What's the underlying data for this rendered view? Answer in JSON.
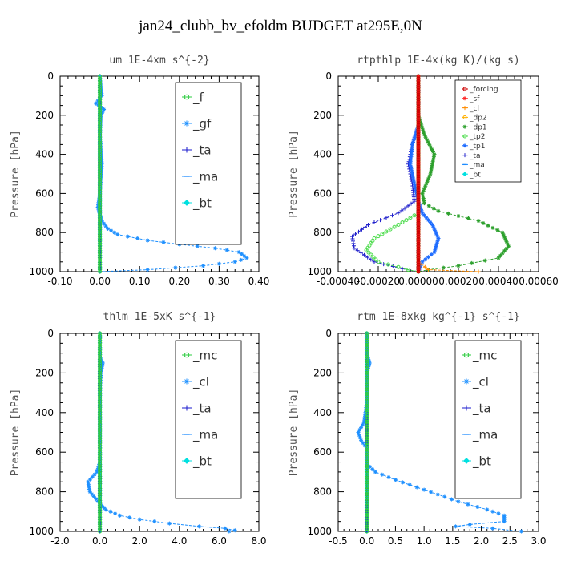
{
  "title": "jan24_clubb_bv_efoldm  BUDGET at295E,0N",
  "chart_data": [
    {
      "type": "line",
      "title": "um  1E-4xm s^{-2}",
      "ylabel": "Pressure [hPa]",
      "xlim": [
        -0.1,
        0.4
      ],
      "ylim": [
        1000,
        0
      ],
      "xticks": [
        "-0.10",
        "0.00",
        "0.10",
        "0.20",
        "0.30",
        "0.40"
      ],
      "yticks": [
        "0",
        "200",
        "400",
        "600",
        "800",
        "1000"
      ],
      "legend_size": "large",
      "series": [
        {
          "name": "_f",
          "color": "#2ecc40",
          "marker": "circle",
          "points": [
            [
              0.0,
              0
            ],
            [
              0.0,
              200
            ],
            [
              0.0,
              400
            ],
            [
              0.0,
              600
            ],
            [
              0.0,
              800
            ],
            [
              0.0,
              1000
            ]
          ]
        },
        {
          "name": "_gf",
          "color": "#1e90ff",
          "marker": "star",
          "points": [
            [
              0.0,
              0
            ],
            [
              0.005,
              100
            ],
            [
              -0.01,
              140
            ],
            [
              0.01,
              170
            ],
            [
              0.003,
              200
            ],
            [
              0.0,
              300
            ],
            [
              0.005,
              450
            ],
            [
              0.0,
              600
            ],
            [
              -0.005,
              670
            ],
            [
              0.0,
              710
            ],
            [
              0.005,
              740
            ],
            [
              0.02,
              780
            ],
            [
              0.045,
              810
            ],
            [
              0.12,
              840
            ],
            [
              0.2,
              860
            ],
            [
              0.29,
              880
            ],
            [
              0.35,
              900
            ],
            [
              0.37,
              930
            ],
            [
              0.34,
              950
            ],
            [
              0.26,
              970
            ],
            [
              0.12,
              990
            ],
            [
              0.0,
              1000
            ]
          ]
        },
        {
          "name": "_ta",
          "color": "#1a1acd",
          "marker": "plus",
          "points": [
            [
              0.0,
              0
            ],
            [
              0.0,
              500
            ],
            [
              0.0,
              1000
            ]
          ]
        },
        {
          "name": "_ma",
          "color": "#1e8cff",
          "marker": "dash",
          "points": [
            [
              0.0,
              0
            ],
            [
              0.0,
              1000
            ]
          ]
        },
        {
          "name": "_bt",
          "color": "#00e0e0",
          "marker": "diamond",
          "points": [
            [
              0.0,
              0
            ],
            [
              0.0,
              1000
            ]
          ]
        }
      ]
    },
    {
      "type": "line",
      "title": "rtpthlp  1E-4x(kg K)/(kg s)",
      "ylabel": "Pressure [hPa]",
      "xlim": [
        -0.0004,
        0.0006
      ],
      "ylim": [
        1000,
        0
      ],
      "xticks": [
        "-0.00040",
        "-0.00020",
        "0.00000",
        "0.00020",
        "0.00040",
        "0.00060"
      ],
      "yticks": [
        "0",
        "200",
        "400",
        "600",
        "800",
        "1000"
      ],
      "legend_size": "small",
      "series": [
        {
          "name": "_forcing",
          "color": "#cc0000",
          "marker": "circle",
          "points": [
            [
              0.0,
              0
            ],
            [
              0.0,
              500
            ],
            [
              0.0,
              1000
            ]
          ]
        },
        {
          "name": "_sf",
          "color": "#ff2020",
          "marker": "star",
          "points": [
            [
              0.0,
              0
            ],
            [
              0.0,
              500
            ],
            [
              0.0,
              1000
            ]
          ]
        },
        {
          "name": "_cl",
          "color": "#ff8c00",
          "marker": "plus",
          "points": [
            [
              0.0,
              0
            ],
            [
              0.0,
              950
            ],
            [
              5e-05,
              990
            ],
            [
              0.0003,
              1000
            ]
          ]
        },
        {
          "name": "_dp2",
          "color": "#ffb000",
          "marker": "circle",
          "points": [
            [
              0.0,
              0
            ],
            [
              0.0,
              1000
            ]
          ]
        },
        {
          "name": "_dp1",
          "color": "#2ca02c",
          "marker": "star",
          "points": [
            [
              0.0,
              0
            ],
            [
              0.0,
              200
            ],
            [
              3e-05,
              300
            ],
            [
              8e-05,
              400
            ],
            [
              6e-05,
              500
            ],
            [
              2e-05,
              600
            ],
            [
              3e-05,
              650
            ],
            [
              0.0001,
              690
            ],
            [
              0.0003,
              740
            ],
            [
              0.00042,
              800
            ],
            [
              0.00045,
              870
            ],
            [
              0.0004,
              930
            ],
            [
              0.0002,
              970
            ],
            [
              5e-05,
              990
            ],
            [
              0.0,
              1000
            ]
          ]
        },
        {
          "name": "_tp2",
          "color": "#4ddc4d",
          "marker": "circle",
          "points": [
            [
              0.0,
              0
            ],
            [
              0.0,
              700
            ],
            [
              -0.0001,
              760
            ],
            [
              -0.00022,
              830
            ],
            [
              -0.00026,
              890
            ],
            [
              -0.0002,
              950
            ],
            [
              -5e-05,
              990
            ],
            [
              0.0,
              1000
            ]
          ]
        },
        {
          "name": "_tp1",
          "color": "#1e6cff",
          "marker": "star",
          "points": [
            [
              0.0,
              0
            ],
            [
              0.0,
              250
            ],
            [
              -3e-05,
              350
            ],
            [
              -4e-05,
              450
            ],
            [
              -2e-05,
              550
            ],
            [
              0.0,
              640
            ],
            [
              2e-05,
              700
            ],
            [
              7e-05,
              760
            ],
            [
              0.0001,
              830
            ],
            [
              8e-05,
              900
            ],
            [
              2e-05,
              950
            ],
            [
              0.0,
              1000
            ]
          ]
        },
        {
          "name": "_ta",
          "color": "#2222cc",
          "marker": "plus",
          "points": [
            [
              0.0,
              0
            ],
            [
              0.0,
              250
            ],
            [
              -3e-05,
              350
            ],
            [
              -5e-05,
              450
            ],
            [
              -3e-05,
              550
            ],
            [
              -2e-05,
              640
            ],
            [
              -0.0001,
              700
            ],
            [
              -0.00025,
              760
            ],
            [
              -0.00033,
              820
            ],
            [
              -0.00032,
              880
            ],
            [
              -0.00022,
              950
            ],
            [
              -8e-05,
              985
            ],
            [
              0.0,
              1000
            ]
          ]
        },
        {
          "name": "_ma",
          "color": "#1e8cff",
          "marker": "dash",
          "points": [
            [
              0.0,
              0
            ],
            [
              0.0,
              1000
            ]
          ]
        },
        {
          "name": "_bt",
          "color": "#00e0e0",
          "marker": "diamond",
          "points": [
            [
              0.0,
              0
            ],
            [
              0.0,
              1000
            ]
          ]
        }
      ]
    },
    {
      "type": "line",
      "title": "thlm  1E-5xK s^{-1}",
      "ylabel": "Pressure [hPa]",
      "xlim": [
        -2.0,
        8.0
      ],
      "ylim": [
        1000,
        0
      ],
      "xticks": [
        "-2.0",
        "0.0",
        "2.0",
        "4.0",
        "6.0",
        "8.0"
      ],
      "yticks": [
        "0",
        "200",
        "400",
        "600",
        "800",
        "1000"
      ],
      "legend_size": "large",
      "series": [
        {
          "name": "_mc",
          "color": "#2ecc40",
          "marker": "circle",
          "points": [
            [
              0.0,
              0
            ],
            [
              0.0,
              200
            ],
            [
              0.0,
              400
            ],
            [
              0.0,
              600
            ],
            [
              0.0,
              800
            ],
            [
              0.0,
              1000
            ]
          ]
        },
        {
          "name": "_cl",
          "color": "#1e90ff",
          "marker": "star",
          "points": [
            [
              0.0,
              0
            ],
            [
              0.0,
              120
            ],
            [
              0.15,
              150
            ],
            [
              0.05,
              200
            ],
            [
              0.0,
              300
            ],
            [
              0.0,
              500
            ],
            [
              0.0,
              650
            ],
            [
              -0.15,
              700
            ],
            [
              -0.6,
              750
            ],
            [
              -0.5,
              800
            ],
            [
              0.0,
              860
            ],
            [
              0.3,
              890
            ],
            [
              1.0,
              920
            ],
            [
              2.0,
              940
            ],
            [
              3.5,
              960
            ],
            [
              5.0,
              975
            ],
            [
              6.3,
              985
            ],
            [
              6.8,
              995
            ],
            [
              6.5,
              1000
            ]
          ]
        },
        {
          "name": "_ta",
          "color": "#1a1acd",
          "marker": "plus",
          "points": [
            [
              0.0,
              0
            ],
            [
              0.0,
              1000
            ]
          ]
        },
        {
          "name": "_ma",
          "color": "#1e8cff",
          "marker": "dash",
          "points": [
            [
              0.0,
              0
            ],
            [
              0.0,
              1000
            ]
          ]
        },
        {
          "name": "_bt",
          "color": "#00e0e0",
          "marker": "diamond",
          "points": [
            [
              0.0,
              0
            ],
            [
              0.0,
              1000
            ]
          ]
        }
      ]
    },
    {
      "type": "line",
      "title": "rtm  1E-8xkg kg^{-1} s^{-1}",
      "ylabel": "Pressure [hPa]",
      "xlim": [
        -0.5,
        3.0
      ],
      "ylim": [
        1000,
        0
      ],
      "xticks": [
        "-0.5",
        "0.0",
        "0.5",
        "1.0",
        "1.5",
        "2.0",
        "2.5",
        "3.0"
      ],
      "yticks": [
        "0",
        "200",
        "400",
        "600",
        "800",
        "1000"
      ],
      "legend_size": "large",
      "series": [
        {
          "name": "_mc",
          "color": "#2ecc40",
          "marker": "circle",
          "points": [
            [
              0.0,
              0
            ],
            [
              0.0,
              200
            ],
            [
              0.0,
              400
            ],
            [
              0.0,
              600
            ],
            [
              0.0,
              800
            ],
            [
              0.0,
              1000
            ]
          ]
        },
        {
          "name": "_cl",
          "color": "#1e90ff",
          "marker": "star",
          "points": [
            [
              0.0,
              0
            ],
            [
              0.0,
              100
            ],
            [
              0.05,
              150
            ],
            [
              0.0,
              200
            ],
            [
              0.0,
              350
            ],
            [
              -0.05,
              450
            ],
            [
              -0.15,
              500
            ],
            [
              -0.1,
              540
            ],
            [
              0.0,
              580
            ],
            [
              0.0,
              660
            ],
            [
              0.15,
              700
            ],
            [
              0.5,
              740
            ],
            [
              1.0,
              790
            ],
            [
              1.6,
              850
            ],
            [
              2.1,
              890
            ],
            [
              2.4,
              920
            ],
            [
              2.4,
              950
            ],
            [
              1.8,
              965
            ],
            [
              1.55,
              975
            ],
            [
              2.2,
              985
            ],
            [
              2.7,
              1000
            ]
          ]
        },
        {
          "name": "_ta",
          "color": "#1a1acd",
          "marker": "plus",
          "points": [
            [
              0.0,
              0
            ],
            [
              0.0,
              1000
            ]
          ]
        },
        {
          "name": "_ma",
          "color": "#1e8cff",
          "marker": "dash",
          "points": [
            [
              0.0,
              0
            ],
            [
              0.0,
              1000
            ]
          ]
        },
        {
          "name": "_bt",
          "color": "#00e0e0",
          "marker": "diamond",
          "points": [
            [
              0.0,
              0
            ],
            [
              0.0,
              1000
            ]
          ]
        }
      ]
    }
  ]
}
